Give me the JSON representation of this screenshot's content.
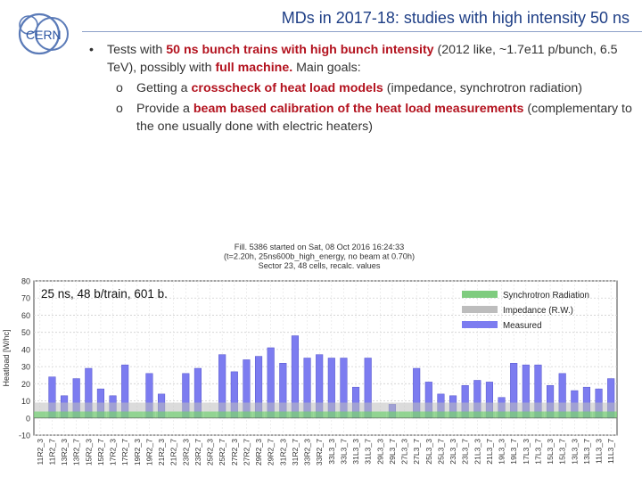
{
  "header": {
    "logo_text": "CERN",
    "title": "MDs in 2017-18: studies with high intensity 50 ns"
  },
  "bullet": {
    "marker": "•",
    "parts": {
      "p1": "Tests with ",
      "h1": "50 ns bunch trains with high bunch intensity",
      "p2": " (2012 like, ~1.7e11 p/bunch, 6.5 TeV), possibly with ",
      "h2": "full machine.",
      "p3": " Main goals:"
    },
    "subitems": [
      {
        "marker": "o",
        "pre": "Getting a ",
        "hl": "crosscheck of heat load models",
        "post": " (impedance, synchrotron radiation)"
      },
      {
        "marker": "o",
        "pre": "Provide a ",
        "hl": "beam based calibration of the heat load measurements",
        "post": " (complementary to the one usually done with electric heaters)"
      }
    ]
  },
  "chart_data": {
    "type": "bar",
    "title_lines": [
      "Fill. 5386 started on Sat, 08 Oct 2016 16:24:33",
      "(t=2.20h, 25ns600b_high_energy, no beam at 0.70h)",
      "Sector 23, 48 cells, recalc. values"
    ],
    "annotation": "25 ns, 48 b/train, 601 b.",
    "ylabel": "Heatload [W/hc]",
    "ylim": [
      -10,
      80
    ],
    "yticks": [
      -10,
      0,
      10,
      20,
      30,
      40,
      50,
      60,
      70,
      80
    ],
    "grid": true,
    "legend_position": "top-right",
    "legend": [
      {
        "name": "Synchrotron Radiation",
        "color": "#7fcc7f"
      },
      {
        "name": "Impedance (R.W.)",
        "color": "#bdbdbd"
      },
      {
        "name": "Measured",
        "color": "#7c7cf0"
      }
    ],
    "categories": [
      "11R2_3",
      "11R2_7",
      "13R2_3",
      "13R2_7",
      "15R2_3",
      "15R2_7",
      "17R2_3",
      "17R2_7",
      "19R2_3",
      "19R2_7",
      "21R2_3",
      "21R2_7",
      "23R2_3",
      "23R2_7",
      "25R2_3",
      "25R2_7",
      "27R2_3",
      "27R2_7",
      "29R2_3",
      "29R2_7",
      "31R2_3",
      "31R2_7",
      "33R2_3",
      "33R2_7",
      "33L3_3",
      "33L3_7",
      "31L3_3",
      "31L3_7",
      "29L3_3",
      "29L3_7",
      "27L3_3",
      "27L3_7",
      "25L3_3",
      "25L3_7",
      "23L3_3",
      "23L3_7",
      "21L3_3",
      "21L3_7",
      "19L3_3",
      "19L3_7",
      "17L3_3",
      "17L3_7",
      "15L3_3",
      "15L3_7",
      "13L3_3",
      "13L3_7",
      "11L3_3",
      "11L3_7"
    ],
    "series": [
      {
        "name": "Measured",
        "values": [
          0,
          24,
          13,
          23,
          29,
          17,
          13,
          31,
          0,
          26,
          14,
          0,
          26,
          29,
          0,
          37,
          27,
          34,
          36,
          41,
          32,
          48,
          35,
          37,
          35,
          35,
          18,
          35,
          0,
          8,
          0,
          29,
          21,
          14,
          13,
          19,
          22,
          21,
          12,
          32,
          31,
          31,
          19,
          26,
          16,
          18,
          17,
          23
        ]
      },
      {
        "name": "Impedance (R.W.)",
        "values": [
          5.2,
          5.2,
          5.2,
          5.2,
          5.2,
          5.2,
          5.2,
          5.2,
          5.2,
          5.2,
          5.2,
          5.2,
          5.2,
          5.2,
          5.2,
          5.2,
          5.2,
          5.2,
          5.2,
          5.2,
          5.2,
          5.2,
          5.2,
          5.2,
          5.2,
          5.2,
          5.2,
          5.2,
          5.2,
          5.2,
          5.2,
          5.2,
          5.2,
          5.2,
          5.2,
          5.2,
          5.2,
          5.2,
          5.2,
          5.2,
          5.2,
          5.2,
          5.2,
          5.2,
          5.2,
          5.2,
          5.2,
          5.2
        ]
      },
      {
        "name": "Synchrotron Radiation",
        "values": [
          3.8,
          3.8,
          3.8,
          3.8,
          3.8,
          3.8,
          3.8,
          3.8,
          3.8,
          3.8,
          3.8,
          3.8,
          3.8,
          3.8,
          3.8,
          3.8,
          3.8,
          3.8,
          3.8,
          3.8,
          3.8,
          3.8,
          3.8,
          3.8,
          3.8,
          3.8,
          3.8,
          3.8,
          3.8,
          3.8,
          3.8,
          3.8,
          3.8,
          3.8,
          3.8,
          3.8,
          3.8,
          3.8,
          3.8,
          3.8,
          3.8,
          3.8,
          3.8,
          3.8,
          3.8,
          3.8,
          3.8,
          3.8
        ]
      }
    ]
  }
}
